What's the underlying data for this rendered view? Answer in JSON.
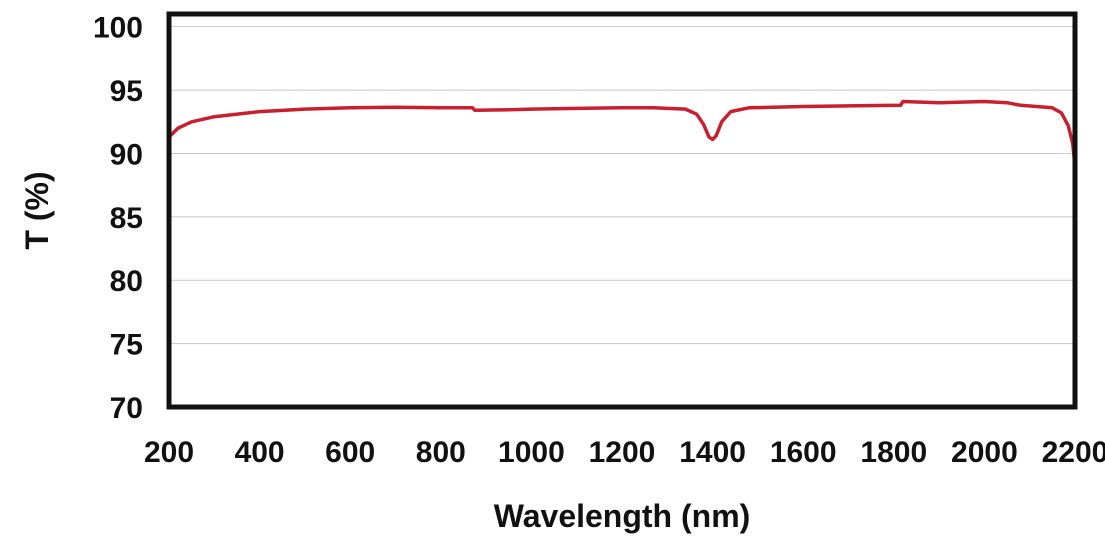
{
  "chart_data": {
    "type": "line",
    "title": "",
    "xlabel": "Wavelength (nm)",
    "ylabel": "T (%)",
    "xlim": [
      200,
      2200
    ],
    "ylim": [
      70,
      101
    ],
    "xticks": [
      200,
      400,
      600,
      800,
      1000,
      1200,
      1400,
      1600,
      1800,
      2000,
      2200
    ],
    "yticks": [
      70,
      75,
      80,
      85,
      90,
      95,
      100
    ],
    "grid": "horizontal",
    "legend": "none",
    "series": [
      {
        "color": "#c8202f",
        "points": [
          [
            200,
            91.3
          ],
          [
            220,
            92.0
          ],
          [
            250,
            92.5
          ],
          [
            300,
            92.9
          ],
          [
            400,
            93.3
          ],
          [
            500,
            93.5
          ],
          [
            600,
            93.6
          ],
          [
            700,
            93.65
          ],
          [
            800,
            93.6
          ],
          [
            870,
            93.6
          ],
          [
            875,
            93.4
          ],
          [
            950,
            93.45
          ],
          [
            1000,
            93.5
          ],
          [
            1100,
            93.55
          ],
          [
            1200,
            93.6
          ],
          [
            1270,
            93.6
          ],
          [
            1300,
            93.55
          ],
          [
            1340,
            93.5
          ],
          [
            1365,
            93.1
          ],
          [
            1380,
            92.3
          ],
          [
            1392,
            91.3
          ],
          [
            1400,
            91.1
          ],
          [
            1408,
            91.4
          ],
          [
            1420,
            92.5
          ],
          [
            1440,
            93.3
          ],
          [
            1480,
            93.6
          ],
          [
            1600,
            93.7
          ],
          [
            1700,
            93.75
          ],
          [
            1815,
            93.8
          ],
          [
            1820,
            94.1
          ],
          [
            1900,
            94.0
          ],
          [
            2000,
            94.1
          ],
          [
            2050,
            94.0
          ],
          [
            2080,
            93.8
          ],
          [
            2150,
            93.6
          ],
          [
            2170,
            93.2
          ],
          [
            2185,
            92.2
          ],
          [
            2195,
            90.8
          ],
          [
            2200,
            89.0
          ]
        ]
      }
    ]
  },
  "colors": {
    "line": "#c8202f",
    "frame": "#111111",
    "grid": "#c8c8c8"
  }
}
